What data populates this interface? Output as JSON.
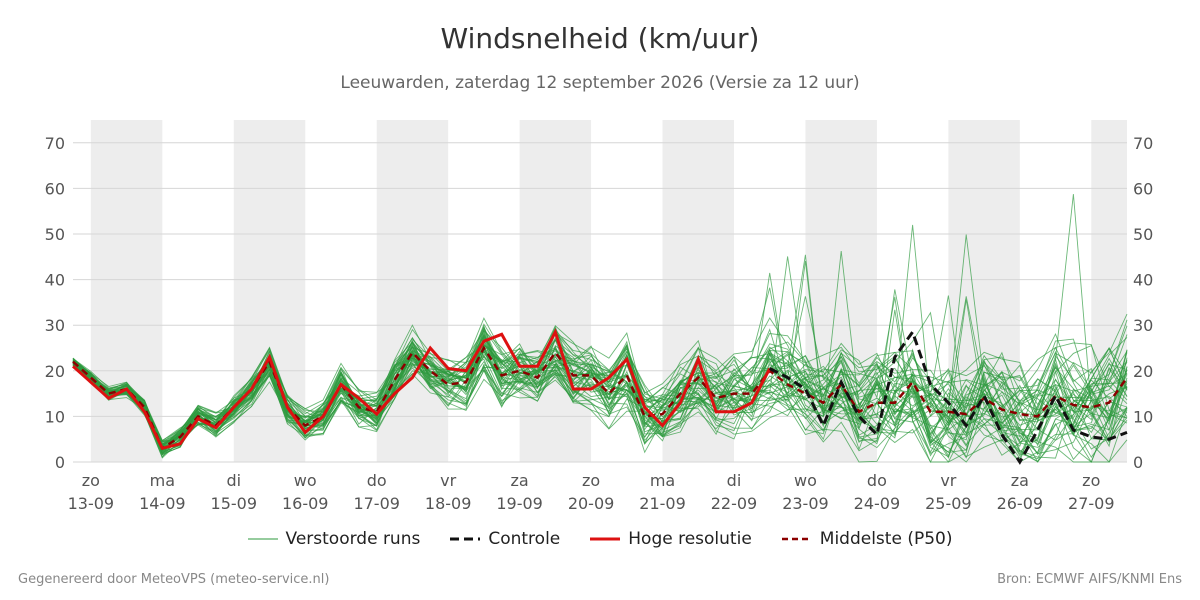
{
  "title": "Windsnelheid (km/uur)",
  "subtitle": "Leeuwarden, zaterdag 12 september 2026 (Versie za 12 uur)",
  "footer": {
    "left": "Gegenereerd door MeteoVPS (meteo-service.nl)",
    "right": "Bron: ECMWF AIFS/KNMI Ens"
  },
  "legend": {
    "ensemble": "Verstoorde runs",
    "control": "Controle",
    "hires": "Hoge resolutie",
    "median": "Middelste (P50)"
  },
  "colors": {
    "ensemble": "#2e9a3e",
    "control": "#111111",
    "hires": "#dd1111",
    "median": "#8b0000",
    "night_band": "#ededed",
    "grid": "#d6d6d6"
  },
  "chart_data": {
    "type": "line",
    "title": "Windsnelheid (km/uur)",
    "ylim": [
      0,
      75
    ],
    "yticks": [
      0,
      10,
      20,
      30,
      40,
      50,
      60,
      70
    ],
    "x_unit": "days from 13-09 00:00",
    "xlim": [
      -0.25,
      14.5
    ],
    "xticks": [
      {
        "pos": 0,
        "day": "zo",
        "date": "13-09"
      },
      {
        "pos": 1,
        "day": "ma",
        "date": "14-09"
      },
      {
        "pos": 2,
        "day": "di",
        "date": "15-09"
      },
      {
        "pos": 3,
        "day": "wo",
        "date": "16-09"
      },
      {
        "pos": 4,
        "day": "do",
        "date": "17-09"
      },
      {
        "pos": 5,
        "day": "vr",
        "date": "18-09"
      },
      {
        "pos": 6,
        "day": "za",
        "date": "19-09"
      },
      {
        "pos": 7,
        "day": "zo",
        "date": "20-09"
      },
      {
        "pos": 8,
        "day": "ma",
        "date": "21-09"
      },
      {
        "pos": 9,
        "day": "di",
        "date": "22-09"
      },
      {
        "pos": 10,
        "day": "wo",
        "date": "23-09"
      },
      {
        "pos": 11,
        "day": "do",
        "date": "24-09"
      },
      {
        "pos": 12,
        "day": "vr",
        "date": "25-09"
      },
      {
        "pos": 13,
        "day": "za",
        "date": "26-09"
      },
      {
        "pos": 14,
        "day": "zo",
        "date": "27-09"
      }
    ],
    "hires": {
      "name": "Hoge resolutie",
      "x": [
        -0.25,
        0.0,
        0.25,
        0.5,
        0.75,
        1.0,
        1.25,
        1.5,
        1.75,
        2.0,
        2.25,
        2.5,
        2.75,
        3.0,
        3.25,
        3.5,
        3.75,
        4.0,
        4.25,
        4.5,
        4.75,
        5.0,
        5.25,
        5.5,
        5.75,
        6.0,
        6.25,
        6.5,
        6.75,
        7.0,
        7.25,
        7.5,
        7.75,
        8.0,
        8.25,
        8.5,
        8.75,
        9.0,
        9.25,
        9.5
      ],
      "values": [
        21,
        17.5,
        14,
        16,
        11,
        3,
        4,
        9.5,
        7.5,
        12,
        16,
        23,
        12,
        6.5,
        10,
        17,
        14,
        10.5,
        15,
        18.5,
        25,
        20.5,
        20,
        26.5,
        28,
        21,
        21,
        28.5,
        16,
        16,
        18.5,
        22.5,
        12,
        8,
        13,
        22.5,
        11,
        11,
        13,
        20.5
      ]
    },
    "control": {
      "name": "Controle",
      "x": [
        9.5,
        9.75,
        10.0,
        10.25,
        10.5,
        10.75,
        11.0,
        11.25,
        11.5,
        11.75,
        12.0,
        12.25,
        12.5,
        12.75,
        13.0,
        13.25,
        13.5,
        13.75,
        14.0,
        14.25,
        14.5
      ],
      "values": [
        20.5,
        18.5,
        16,
        8,
        17.5,
        10,
        6,
        23,
        28.5,
        17,
        13,
        8,
        14.5,
        6,
        0,
        7,
        14.5,
        7,
        5.5,
        5,
        6.5
      ]
    },
    "median": {
      "name": "Middelste (P50)",
      "x": [
        -0.25,
        0.0,
        0.25,
        0.5,
        0.75,
        1.0,
        1.25,
        1.5,
        1.75,
        2.0,
        2.25,
        2.5,
        2.75,
        3.0,
        3.25,
        3.5,
        3.75,
        4.0,
        4.25,
        4.5,
        4.75,
        5.0,
        5.25,
        5.5,
        5.75,
        6.0,
        6.25,
        6.5,
        6.75,
        7.0,
        7.25,
        7.5,
        7.75,
        8.0,
        8.25,
        8.5,
        8.75,
        9.0,
        9.25,
        9.5,
        9.75,
        10.0,
        10.25,
        10.5,
        10.75,
        11.0,
        11.25,
        11.5,
        11.75,
        12.0,
        12.25,
        12.5,
        12.75,
        13.0,
        13.25,
        13.5,
        13.75,
        14.0,
        14.25,
        14.5
      ],
      "values": [
        22,
        18.5,
        15,
        16,
        12,
        3,
        5.5,
        10,
        8,
        12,
        16,
        22,
        12,
        8,
        10,
        17,
        12,
        11,
        18,
        24,
        20,
        17,
        17.5,
        25,
        19,
        20,
        18.5,
        24,
        19,
        19,
        15,
        19,
        10,
        10.5,
        15,
        18.5,
        14,
        15,
        15,
        20,
        17,
        15,
        13,
        17,
        11,
        13,
        13,
        17.5,
        11,
        11,
        10.5,
        14,
        11.5,
        10.5,
        10,
        14.5,
        12.5,
        12,
        13,
        18.5
      ]
    },
    "ensemble_members": 50
  }
}
